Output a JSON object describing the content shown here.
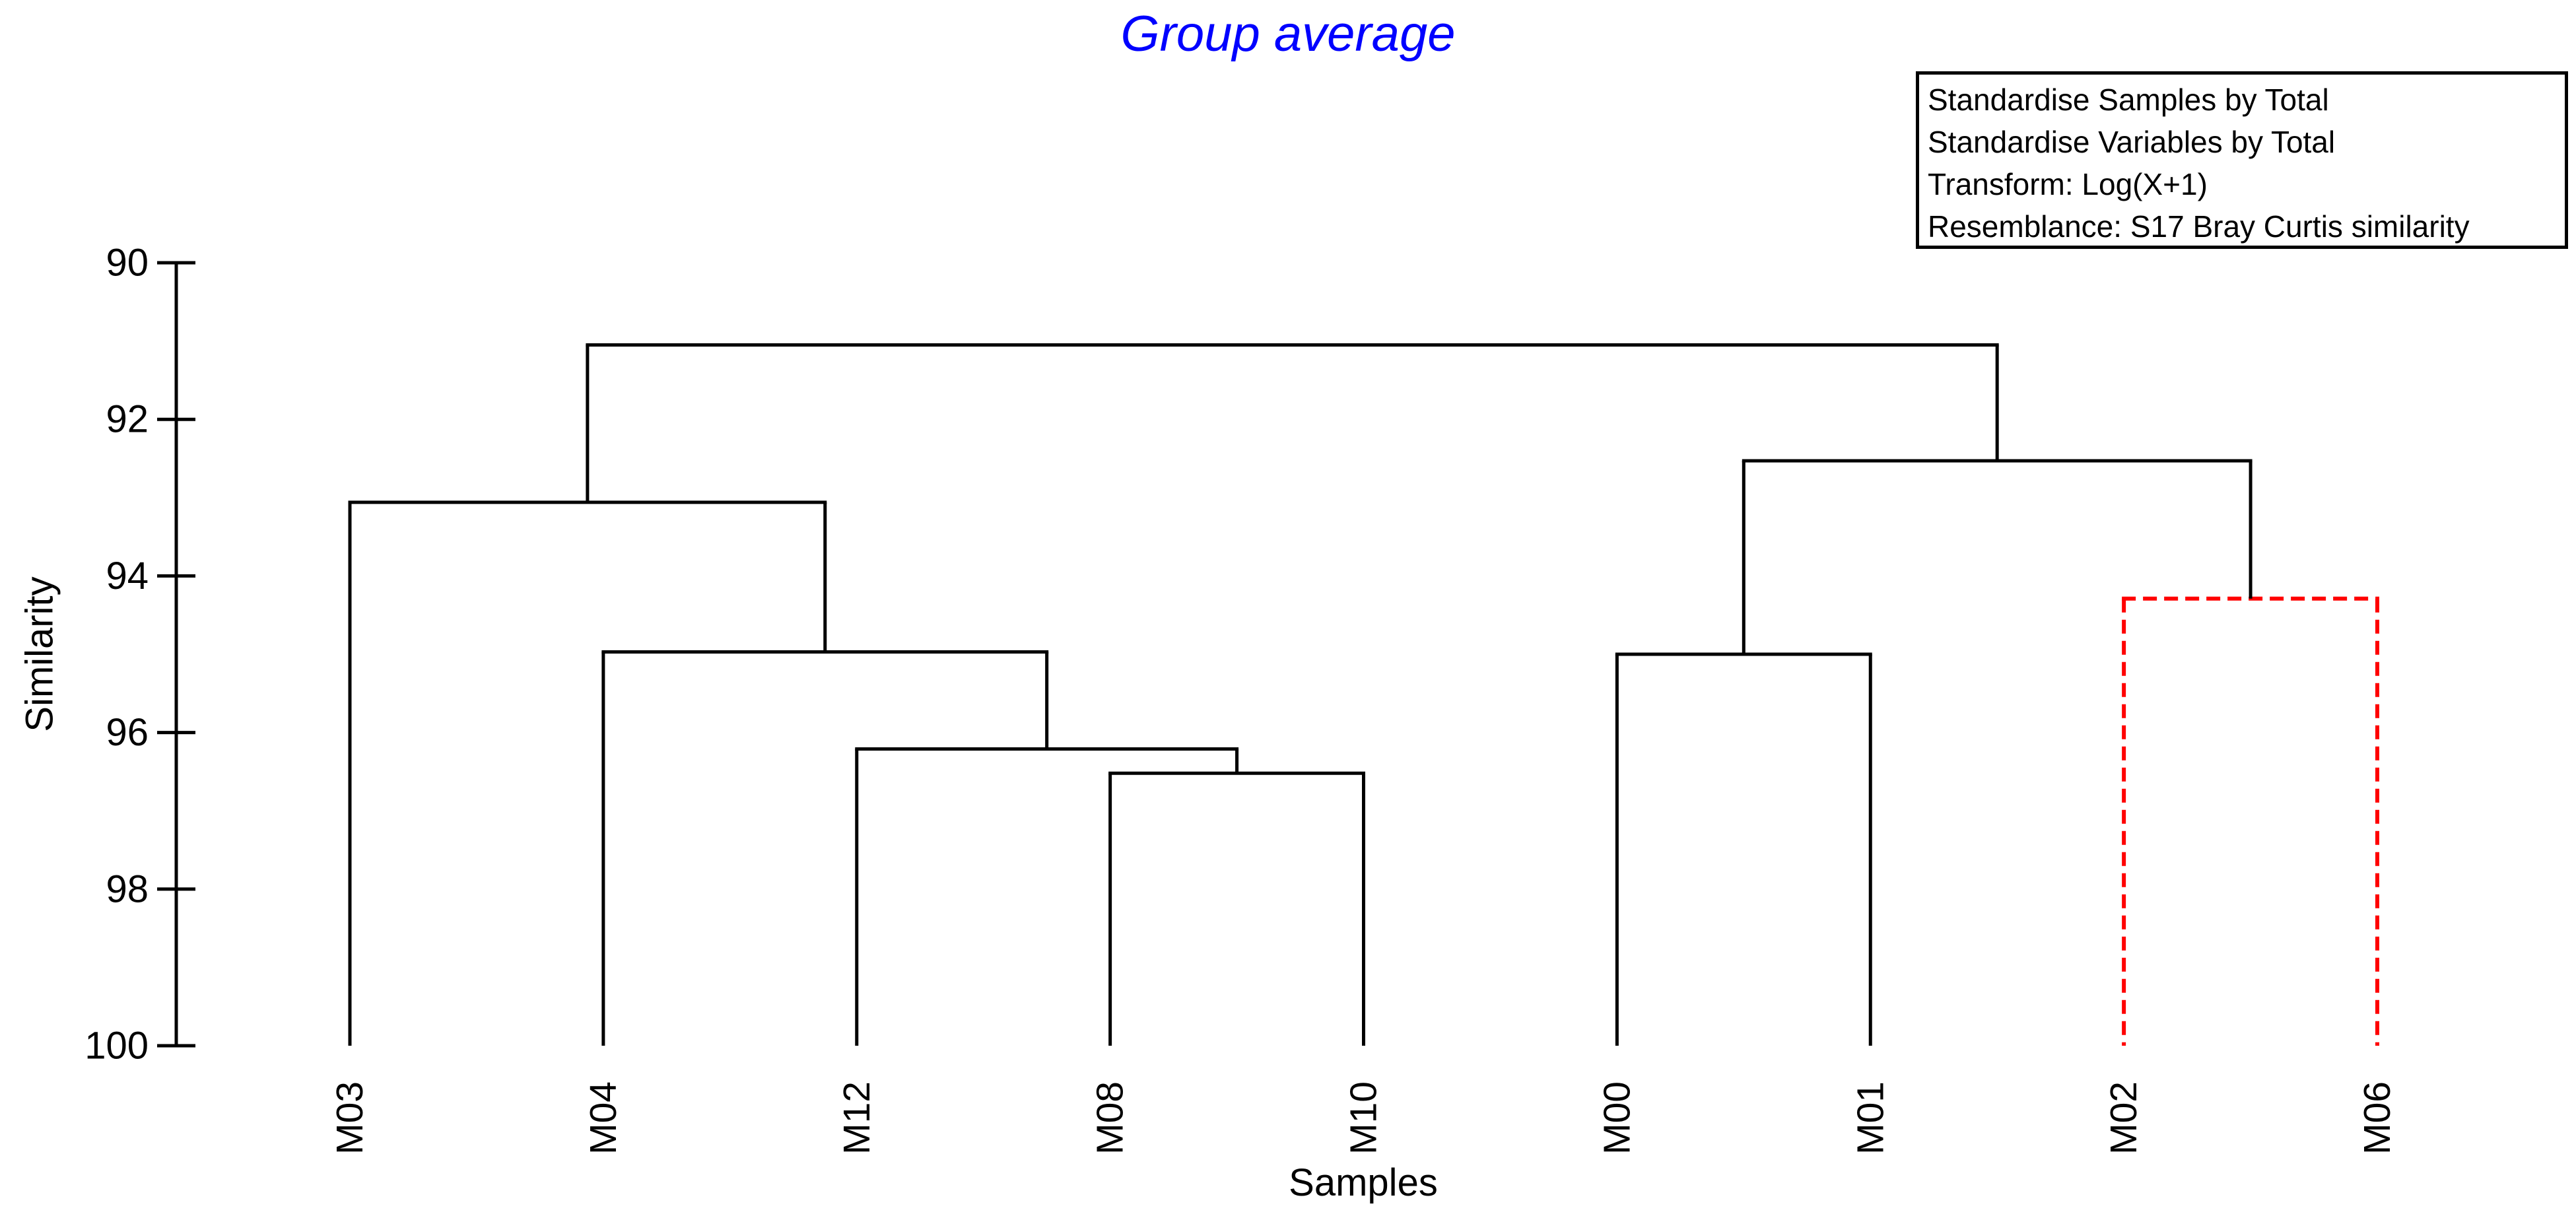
{
  "chart_data": {
    "type": "dendrogram",
    "title": "Group average",
    "title_color": "#0000ff",
    "xlabel": "Samples",
    "ylabel": "Similarity",
    "y_axis": {
      "label": "Similarity",
      "min": 90,
      "max": 100,
      "ticks": [
        90,
        92,
        94,
        96,
        98,
        100
      ],
      "orientation": "values increase downward (root at top)"
    },
    "leaves": [
      "M03",
      "M04",
      "M12",
      "M08",
      "M10",
      "M00",
      "M01",
      "M02",
      "M06"
    ],
    "line_color": "#000000",
    "flagged_style": {
      "color": "#ff0000",
      "dash": [
        21,
        11
      ],
      "width": 6
    },
    "tree": {
      "height": 91.05,
      "children": [
        {
          "height": 93.06,
          "children": [
            {
              "leaf": "M03"
            },
            {
              "height": 94.97,
              "children": [
                {
                  "leaf": "M04"
                },
                {
                  "height": 96.21,
                  "children": [
                    {
                      "leaf": "M12"
                    },
                    {
                      "height": 96.52,
                      "children": [
                        {
                          "leaf": "M08"
                        },
                        {
                          "leaf": "M10"
                        }
                      ]
                    }
                  ]
                }
              ]
            }
          ]
        },
        {
          "height": 92.53,
          "children": [
            {
              "height": 95.0,
              "children": [
                {
                  "leaf": "M00"
                },
                {
                  "leaf": "M01"
                }
              ]
            },
            {
              "height": 94.29,
              "flagged": true,
              "children": [
                {
                  "leaf": "M02"
                },
                {
                  "leaf": "M06"
                }
              ]
            }
          ]
        }
      ]
    }
  },
  "info_box": {
    "lines": [
      "Standardise Samples by Total",
      "Standardise Variables by Total",
      "Transform: Log(X+1)",
      "Resemblance: S17 Bray Curtis similarity"
    ]
  }
}
